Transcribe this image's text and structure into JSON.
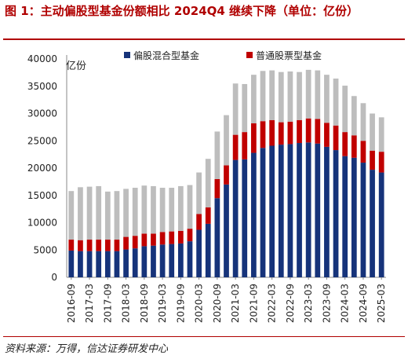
{
  "figure": {
    "title": "图 1：主动偏股型基金份额相比 2024Q4 继续下降（单位：亿份）",
    "source": "资料来源：万得，信达证券研发中心"
  },
  "colors": {
    "title": "#b00000",
    "partial": "#16337a",
    "normal": "#c00000",
    "other": "#bdbdbd"
  },
  "chart_data": {
    "type": "bar",
    "stacked": true,
    "title": "",
    "xlabel": "",
    "ylabel": "亿份",
    "ylim": [
      0,
      40000
    ],
    "yticks": [
      0,
      5000,
      10000,
      15000,
      20000,
      25000,
      30000,
      35000,
      40000
    ],
    "legend_position": "top",
    "categories": [
      "2016-09",
      "2016-12",
      "2017-03",
      "2017-06",
      "2017-09",
      "2017-12",
      "2018-03",
      "2018-06",
      "2018-09",
      "2018-12",
      "2019-03",
      "2019-06",
      "2019-09",
      "2019-12",
      "2020-03",
      "2020-06",
      "2020-09",
      "2020-12",
      "2021-03",
      "2021-06",
      "2021-09",
      "2021-12",
      "2022-03",
      "2022-06",
      "2022-09",
      "2022-12",
      "2023-03",
      "2023-06",
      "2023-09",
      "2023-12",
      "2024-03",
      "2024-06",
      "2024-09",
      "2024-12",
      "2025-03"
    ],
    "xtick_labels": [
      "2016-09",
      "2017-03",
      "2017-09",
      "2018-03",
      "2018-09",
      "2019-03",
      "2019-09",
      "2020-03",
      "2020-09",
      "2021-03",
      "2021-09",
      "2022-03",
      "2022-09",
      "2023-03",
      "2023-09",
      "2024-03",
      "2024-09",
      "2025-03"
    ],
    "series": [
      {
        "name": "偏股混合型基金",
        "values": [
          4900,
          4800,
          4800,
          4800,
          4800,
          4800,
          5100,
          5300,
          5700,
          5800,
          6000,
          6100,
          6200,
          6600,
          8700,
          9800,
          14500,
          17000,
          21500,
          21600,
          22800,
          23700,
          24100,
          24300,
          24400,
          24600,
          24700,
          24500,
          23900,
          23300,
          22200,
          21900,
          21000,
          19700,
          19200
        ]
      },
      {
        "name": "普通股票型基金",
        "values": [
          2000,
          2000,
          2100,
          2100,
          2100,
          2100,
          2300,
          2300,
          2300,
          2200,
          2300,
          2300,
          2300,
          2300,
          2900,
          3000,
          3500,
          3500,
          4600,
          5000,
          5400,
          4900,
          4700,
          4100,
          4100,
          4200,
          4400,
          4500,
          4400,
          4500,
          4400,
          4100,
          4000,
          3500,
          3800
        ]
      },
      {
        "name": "",
        "values": [
          8900,
          9700,
          9700,
          9800,
          8800,
          8900,
          8800,
          8800,
          8800,
          8700,
          8100,
          8000,
          8200,
          8000,
          7600,
          8900,
          8700,
          9200,
          9400,
          8800,
          8900,
          9200,
          9100,
          9200,
          9200,
          8800,
          8900,
          8900,
          8800,
          8600,
          8500,
          7200,
          6900,
          6800,
          6300
        ]
      }
    ]
  }
}
